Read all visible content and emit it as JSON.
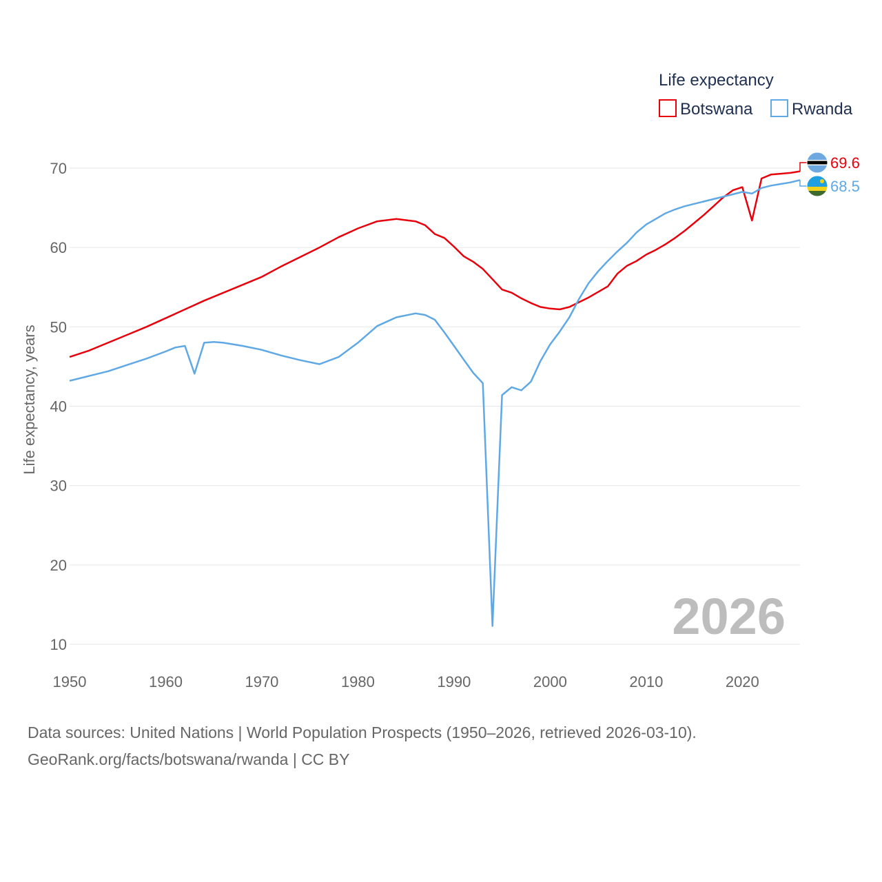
{
  "chart_data": {
    "type": "line",
    "year_label": "2026",
    "ylabel": "Life expectancy, years",
    "legend_title": "Life expectancy",
    "xlim": [
      1950,
      2026
    ],
    "ylim": [
      10,
      72
    ],
    "xticks": [
      "1950",
      "1960",
      "1970",
      "1980",
      "1990",
      "2000",
      "2010",
      "2020"
    ],
    "yticks": [
      "10",
      "20",
      "30",
      "40",
      "50",
      "60",
      "70"
    ],
    "series": [
      {
        "name": "Botswana",
        "color": "#e8000b",
        "flag": "botswana-flag-icon",
        "end_label": "69.6",
        "x": [
          1950,
          1952,
          1954,
          1956,
          1958,
          1960,
          1962,
          1964,
          1966,
          1968,
          1970,
          1972,
          1974,
          1976,
          1978,
          1980,
          1982,
          1984,
          1986,
          1987,
          1988,
          1989,
          1990,
          1991,
          1992,
          1993,
          1994,
          1995,
          1996,
          1997,
          1998,
          1999,
          2000,
          2001,
          2002,
          2003,
          2004,
          2005,
          2006,
          2007,
          2008,
          2009,
          2010,
          2011,
          2012,
          2013,
          2014,
          2015,
          2016,
          2017,
          2018,
          2019,
          2020,
          2021,
          2022,
          2023,
          2024,
          2025,
          2026
        ],
        "y": [
          46.2,
          47.0,
          48.0,
          49.0,
          50.0,
          51.1,
          52.2,
          53.3,
          54.3,
          55.3,
          56.3,
          57.6,
          58.8,
          60.0,
          61.3,
          62.4,
          63.3,
          63.6,
          63.3,
          62.8,
          61.7,
          61.2,
          60.1,
          58.9,
          58.2,
          57.3,
          56.0,
          54.7,
          54.3,
          53.6,
          53.0,
          52.5,
          52.3,
          52.2,
          52.5,
          53.1,
          53.7,
          54.4,
          55.1,
          56.7,
          57.7,
          58.3,
          59.1,
          59.7,
          60.4,
          61.2,
          62.1,
          63.1,
          64.1,
          65.2,
          66.3,
          67.2,
          67.6,
          63.4,
          68.7,
          69.2,
          69.3,
          69.4,
          69.6
        ]
      },
      {
        "name": "Rwanda",
        "color": "#5fa8e6",
        "flag": "rwanda-flag-icon",
        "end_label": "68.5",
        "x": [
          1950,
          1952,
          1954,
          1956,
          1958,
          1960,
          1961,
          1962,
          1963,
          1964,
          1965,
          1966,
          1968,
          1970,
          1972,
          1974,
          1976,
          1978,
          1980,
          1982,
          1984,
          1986,
          1987,
          1988,
          1989,
          1990,
          1991,
          1992,
          1993,
          1994,
          1995,
          1996,
          1997,
          1998,
          1999,
          2000,
          2001,
          2002,
          2003,
          2004,
          2005,
          2006,
          2007,
          2008,
          2009,
          2010,
          2011,
          2012,
          2013,
          2014,
          2015,
          2016,
          2017,
          2018,
          2019,
          2020,
          2021,
          2022,
          2023,
          2024,
          2025,
          2026
        ],
        "y": [
          43.2,
          43.8,
          44.4,
          45.2,
          46.0,
          46.9,
          47.4,
          47.6,
          44.1,
          48.0,
          48.1,
          48.0,
          47.6,
          47.1,
          46.4,
          45.8,
          45.3,
          46.2,
          48.0,
          50.1,
          51.2,
          51.7,
          51.5,
          50.9,
          49.3,
          47.6,
          45.9,
          44.2,
          42.9,
          12.3,
          41.4,
          42.4,
          42.0,
          43.1,
          45.7,
          47.8,
          49.4,
          51.2,
          53.5,
          55.5,
          57.0,
          58.3,
          59.5,
          60.6,
          61.9,
          62.9,
          63.6,
          64.3,
          64.8,
          65.2,
          65.5,
          65.8,
          66.1,
          66.4,
          66.7,
          67.0,
          66.8,
          67.5,
          67.8,
          68.0,
          68.2,
          68.5
        ]
      }
    ]
  },
  "source": {
    "line1": "Data sources: United Nations | World Population Prospects (1950–2026, retrieved 2026-03-10).",
    "line2": "GeoRank.org/facts/botswana/rwanda | CC BY"
  }
}
